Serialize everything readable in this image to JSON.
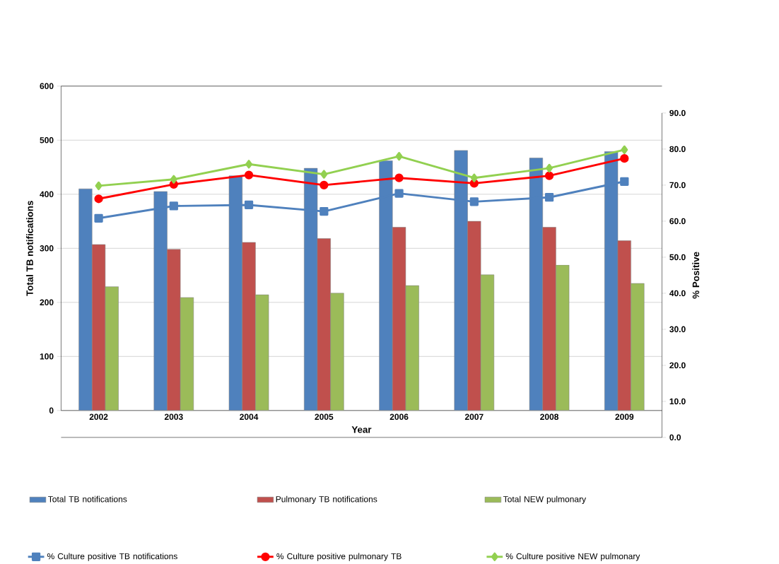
{
  "chart_data": {
    "type": "bar",
    "xlabel": "Year",
    "ylabel": "Total TB notifications",
    "y2label": "% Positive",
    "categories": [
      "2002",
      "2003",
      "2004",
      "2005",
      "2006",
      "2007",
      "2008",
      "2009"
    ],
    "series": [
      {
        "name": "Total TB notifications",
        "color": "#4f81bd",
        "values": [
          410,
          405,
          434,
          448,
          462,
          481,
          467,
          479
        ]
      },
      {
        "name": "Pulmonary TB notifications",
        "color": "#c0504d",
        "values": [
          307,
          298,
          311,
          318,
          339,
          350,
          339,
          314
        ]
      },
      {
        "name": "Total NEW pulmonary",
        "color": "#9bbb59",
        "values": [
          229,
          209,
          214,
          217,
          231,
          251,
          269,
          235
        ]
      },
      {
        "name": "% Culture positive TB notifications",
        "type": "line",
        "axis": "y2",
        "marker": "square",
        "color": "#4f81bd",
        "values": [
          60.8,
          64.2,
          64.5,
          62.7,
          67.7,
          65.4,
          66.6,
          71.0
        ]
      },
      {
        "name": "% Culture positive pulmonary TB",
        "type": "line",
        "axis": "y2",
        "marker": "circle",
        "color": "#ff0000",
        "values": [
          66.2,
          70.2,
          72.8,
          70.0,
          72.0,
          70.5,
          72.6,
          77.4
        ]
      },
      {
        "name": "% Culture positive NEW pulmonary",
        "type": "line",
        "axis": "y2",
        "marker": "diamond",
        "color": "#92d050",
        "values": [
          69.8,
          71.6,
          75.8,
          73.0,
          78.0,
          72.0,
          74.7,
          79.8
        ]
      }
    ],
    "ylim": [
      0,
      600
    ],
    "yticks": [
      0,
      100,
      200,
      300,
      400,
      500,
      600
    ],
    "y2lim": [
      0,
      90
    ],
    "y2ticks": [
      {
        "value": 0,
        "label": "0.0"
      },
      {
        "value": 10,
        "label": "10.0"
      },
      {
        "value": 20,
        "label": "20.0"
      },
      {
        "value": 30,
        "label": "30.0"
      },
      {
        "value": 40,
        "label": "40.0"
      },
      {
        "value": 50,
        "label": "50.0"
      },
      {
        "value": 60,
        "label": "60.0"
      },
      {
        "value": 70,
        "label": "70.0"
      },
      {
        "value": 80,
        "label": "80.0"
      },
      {
        "value": 90,
        "label": "90.0"
      }
    ],
    "grid": "y",
    "legend": "bottom"
  }
}
